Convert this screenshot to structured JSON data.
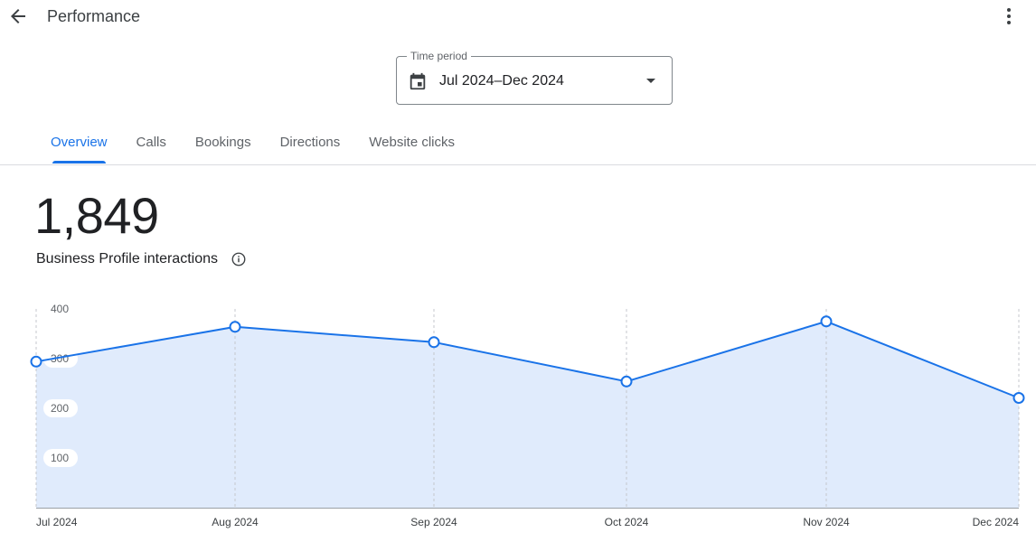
{
  "header": {
    "title": "Performance",
    "back_icon": "arrow-back-icon",
    "more_icon": "more-vert-icon"
  },
  "time_period": {
    "label": "Time period",
    "value": "Jul 2024–Dec 2024",
    "icon": "calendar-icon"
  },
  "tabs": [
    {
      "label": "Overview",
      "active": true
    },
    {
      "label": "Calls",
      "active": false
    },
    {
      "label": "Bookings",
      "active": false
    },
    {
      "label": "Directions",
      "active": false
    },
    {
      "label": "Website clicks",
      "active": false
    }
  ],
  "metric": {
    "value": "1,849",
    "label": "Business Profile interactions",
    "info_icon": "info-icon"
  },
  "colors": {
    "accent": "#1a73e8",
    "area_fill": "#e0ebfc",
    "text": "#202124",
    "muted": "#5f6368"
  },
  "chart_data": {
    "type": "area",
    "x": [
      "Jul 2024",
      "Aug 2024",
      "Sep 2024",
      "Oct 2024",
      "Nov 2024",
      "Dec 2024"
    ],
    "values": [
      294,
      364,
      333,
      254,
      375,
      221
    ],
    "yticks": [
      100,
      200,
      300,
      400
    ],
    "ylim": [
      0,
      400
    ],
    "grid": "vertical-dashed",
    "markers": true
  }
}
